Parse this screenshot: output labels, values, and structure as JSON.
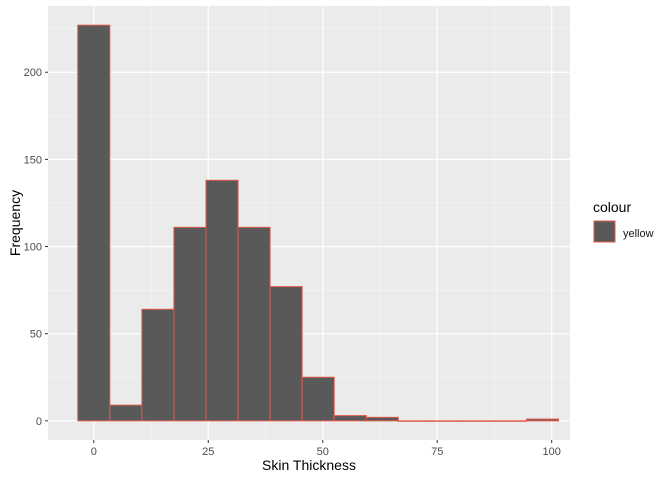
{
  "chart_data": {
    "type": "bar",
    "xlabel": "Skin Thickness",
    "ylabel": "Frequency",
    "xlim": [
      -10,
      104
    ],
    "ylim": [
      -11,
      238
    ],
    "xticks": [
      0,
      25,
      50,
      75,
      100
    ],
    "yticks": [
      0,
      50,
      100,
      150,
      200
    ],
    "xminor": [
      12.5,
      37.5,
      62.5,
      87.5
    ],
    "yminor": [
      25,
      75,
      125,
      175,
      225
    ],
    "bin_width": 7,
    "bin_starts": [
      -3.5,
      3.5,
      10.5,
      17.5,
      24.5,
      31.5,
      38.5,
      45.5,
      52.5,
      59.5,
      66.5,
      73.5,
      80.5,
      87.5,
      94.5
    ],
    "values": [
      227,
      9,
      64,
      111,
      138,
      111,
      77,
      25,
      3,
      2,
      0,
      0,
      0,
      0,
      1
    ],
    "grid": true,
    "bar_fill": "#595959",
    "bar_outline": "#e0584b",
    "panel_background": "#ebebeb",
    "legend": {
      "title": "colour",
      "placement": "right",
      "entries": [
        {
          "label": "yellow"
        }
      ]
    }
  }
}
